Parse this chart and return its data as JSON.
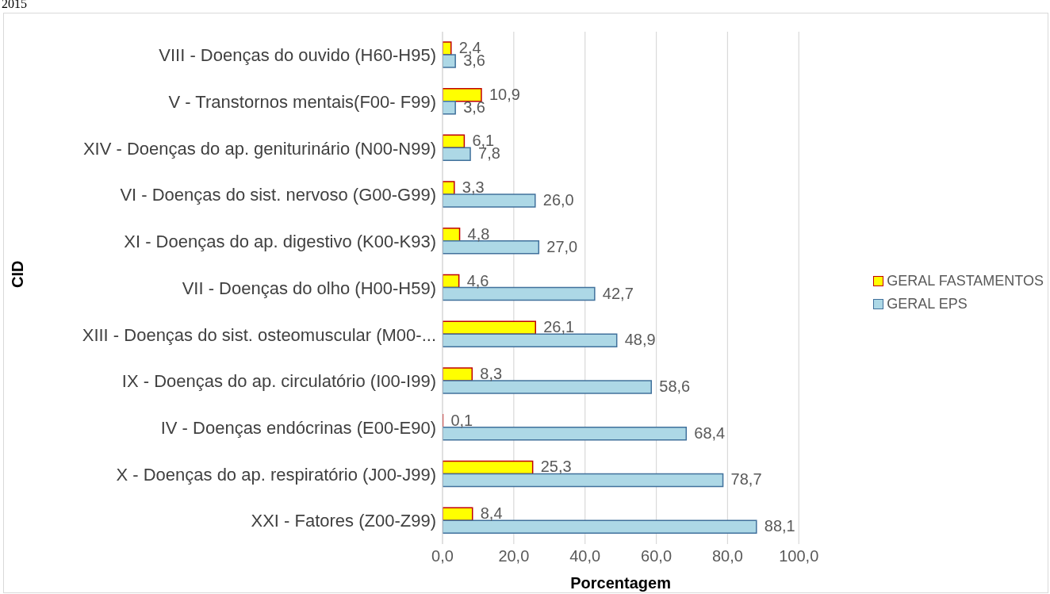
{
  "chart_data": {
    "type": "bar",
    "orientation": "horizontal",
    "xlabel": "Porcentagem",
    "ylabel": "CID",
    "annotations": [
      "2015"
    ],
    "categories": [
      "VIII - Doenças do ouvido (H60-H95)",
      "V - Transtornos mentais(F00- F99)",
      "XIV - Doenças do ap. geniturinário (N00-N99)",
      "VI - Doenças do sist. nervoso (G00-G99)",
      "XI - Doenças do ap. digestivo (K00-K93)",
      "VII - Doenças do olho (H00-H59)",
      "XIII - Doenças do sist. osteomuscular (M00-...",
      "IX - Doenças do ap. circulatório (I00-I99)",
      "IV - Doenças endócrinas (E00-E90)",
      "X - Doenças do ap. respiratório (J00-J99)",
      "XXI - Fatores (Z00-Z99)"
    ],
    "series": [
      {
        "name": "GERAL FASTAMENTOS",
        "color": "#ffff00",
        "values": [
          2.4,
          10.9,
          6.1,
          3.3,
          4.8,
          4.6,
          26.1,
          8.3,
          0.1,
          25.3,
          8.4
        ],
        "value_labels": [
          "2,4",
          "10,9",
          "6,1",
          "3,3",
          "4,8",
          "4,6",
          "26,1",
          "8,3",
          "0,1",
          "25,3",
          "8,4"
        ]
      },
      {
        "name": "GERAL EPS",
        "color": "#add8e6",
        "values": [
          3.6,
          3.6,
          7.8,
          26.0,
          27.0,
          42.7,
          48.9,
          58.6,
          68.4,
          78.7,
          88.1
        ],
        "value_labels": [
          "3,6",
          "3,6",
          "7,8",
          "26,0",
          "27,0",
          "42,7",
          "48,9",
          "58,6",
          "68,4",
          "78,7",
          "88,1"
        ]
      }
    ],
    "xlim": [
      0,
      100
    ],
    "xticks": [
      {
        "value": 0,
        "label": "0,0"
      },
      {
        "value": 20,
        "label": "20,0"
      },
      {
        "value": 40,
        "label": "40,0"
      },
      {
        "value": 60,
        "label": "60,0"
      },
      {
        "value": 80,
        "label": "80,0"
      },
      {
        "value": 100,
        "label": "100,0"
      }
    ],
    "grid": "x",
    "legend": "right"
  }
}
